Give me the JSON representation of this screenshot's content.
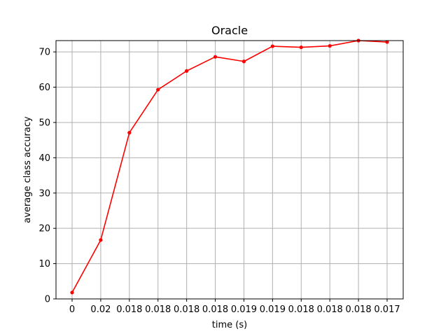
{
  "chart_data": {
    "type": "line",
    "title": "Oracle",
    "xlabel": "time (s)",
    "ylabel": "average class accuracy",
    "categories": [
      "0",
      "0.02",
      "0.018",
      "0.018",
      "0.018",
      "0.018",
      "0.019",
      "0.019",
      "0.018",
      "0.018",
      "0.018",
      "0.017"
    ],
    "series": [
      {
        "values": [
          1.8,
          16.7,
          47.1,
          59.3,
          64.6,
          68.6,
          67.3,
          71.6,
          71.3,
          71.7,
          73.2,
          72.8
        ]
      }
    ],
    "ylim": [
      0,
      73.2
    ],
    "yticks": [
      0,
      10,
      20,
      30,
      40,
      50,
      60,
      70
    ],
    "grid": true,
    "line_color": "#ff0000",
    "grid_color": "#b0b0b0",
    "marker": "dot"
  }
}
